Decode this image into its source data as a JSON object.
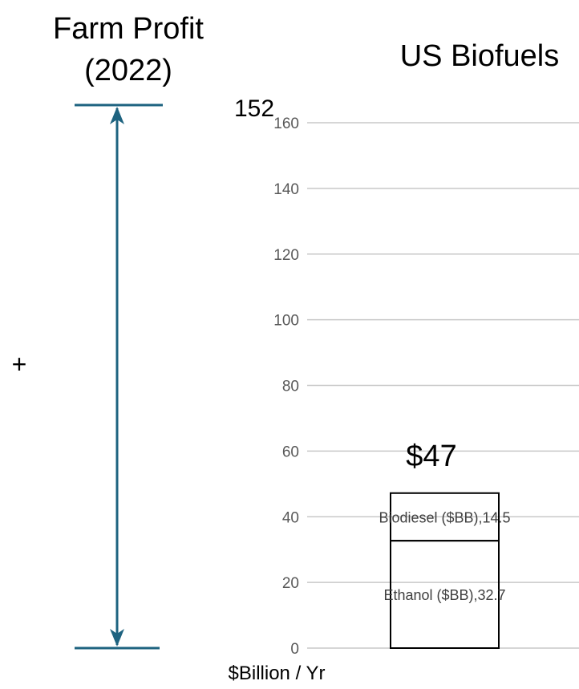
{
  "farm_profit": {
    "title_line1": "Farm Profit",
    "title_line2": "(2022)",
    "value_label": "152",
    "value": 152,
    "plus_sign": "+"
  },
  "chart_data": {
    "type": "bar",
    "stacked": true,
    "title": "US Biofuels",
    "ylabel": "$Billion / Yr",
    "ylim": [
      0,
      160
    ],
    "yticks": [
      0,
      20,
      40,
      60,
      80,
      100,
      120,
      140,
      160
    ],
    "grid": true,
    "total_label": "$47",
    "series": [
      {
        "name": "Ethanol ($BB)",
        "value": 32.7,
        "label": "Ethanol ($BB),32.7"
      },
      {
        "name": "Biodiesel ($BB)",
        "value": 14.5,
        "label": "Biodiesel ($BB),14.5"
      }
    ]
  },
  "colors": {
    "arrow": "#1e6380",
    "grid": "#c8c8c8",
    "axis_text": "#595959",
    "bar_stroke": "#000000",
    "text": "#000000"
  }
}
